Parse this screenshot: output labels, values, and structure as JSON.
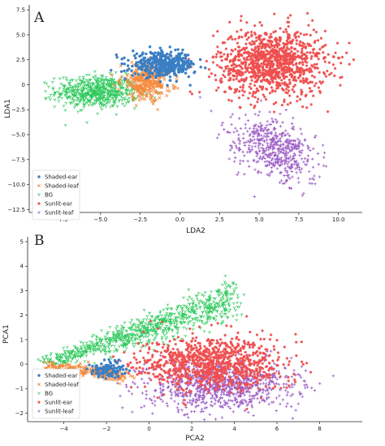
{
  "chart_data": [
    {
      "type": "scatter",
      "panel_label": "A",
      "xlabel": "LDA2",
      "ylabel": "LDA1",
      "xlim": [
        -9.5,
        11.5
      ],
      "ylim": [
        -12.8,
        8.0
      ],
      "xticks": [
        -7.5,
        -5.0,
        -2.5,
        0.0,
        2.5,
        5.0,
        7.5,
        10.0
      ],
      "xtick_labels": [
        "−7.5",
        "−5.0",
        "−2.5",
        "0.0",
        "2.5",
        "5.0",
        "7.5",
        "10.0"
      ],
      "yticks": [
        7.5,
        5.0,
        2.5,
        0.0,
        -2.5,
        -5.0,
        -7.5,
        -10.0,
        -12.5
      ],
      "ytick_labels": [
        "7.5",
        "5.0",
        "2.5",
        "0",
        "−2.5",
        "−5.0",
        "−7.5",
        "−10.0",
        "−12.5"
      ],
      "legend_position": "lower-left",
      "series": [
        {
          "name": "Shaded-ear",
          "color": "#3a7fc4",
          "marker": "circle",
          "cluster": {
            "cx": -1.0,
            "cy": 2.0,
            "sx": 1.0,
            "sy": 0.6,
            "n": 420
          }
        },
        {
          "name": "Shaded-leaf",
          "color": "#f5883a",
          "marker": "x",
          "cluster": {
            "cx": -2.1,
            "cy": 0.3,
            "sx": 0.8,
            "sy": 0.9,
            "n": 330
          }
        },
        {
          "name": "BG",
          "color": "#2ec95c",
          "marker": "tri_down",
          "cluster": {
            "cx": -5.2,
            "cy": -0.7,
            "sx": 1.3,
            "sy": 0.8,
            "n": 650
          }
        },
        {
          "name": "Sunlit-ear",
          "color": "#ef4f4f",
          "marker": "star",
          "cluster": {
            "cx": 5.8,
            "cy": 2.2,
            "sx": 1.7,
            "sy": 1.7,
            "n": 1100
          }
        },
        {
          "name": "Sunlit-leaf",
          "color": "#9b5bc4",
          "marker": "plus",
          "cluster": {
            "cx": 6.0,
            "cy": -6.4,
            "sx": 1.3,
            "sy": 1.5,
            "n": 520
          }
        }
      ]
    },
    {
      "type": "scatter",
      "panel_label": "B",
      "xlabel": "PCA2",
      "ylabel": "PCA1",
      "xlim": [
        -5.7,
        10.0
      ],
      "ylim": [
        -2.35,
        5.2
      ],
      "xticks": [
        -4,
        -2,
        0,
        2,
        4,
        6,
        8
      ],
      "xtick_labels": [
        "−4",
        "−2",
        "0",
        "2",
        "4",
        "6",
        "8"
      ],
      "yticks": [
        -2,
        -1,
        0,
        1,
        2,
        3,
        4,
        5
      ],
      "ytick_labels": [
        "−2",
        "−1",
        "0",
        "1",
        "2",
        "3",
        "4",
        "5"
      ],
      "legend_position": "lower-left",
      "series": [
        {
          "name": "Shaded-ear",
          "color": "#3a7fc4",
          "marker": "circle"
        },
        {
          "name": "Shaded-leaf",
          "color": "#f5883a",
          "marker": "x"
        },
        {
          "name": "BG",
          "color": "#2ec95c",
          "marker": "tri_down"
        },
        {
          "name": "Sunlit-ear",
          "color": "#ef4f4f",
          "marker": "star"
        },
        {
          "name": "Sunlit-leaf",
          "color": "#9b5bc4",
          "marker": "plus"
        }
      ]
    }
  ]
}
